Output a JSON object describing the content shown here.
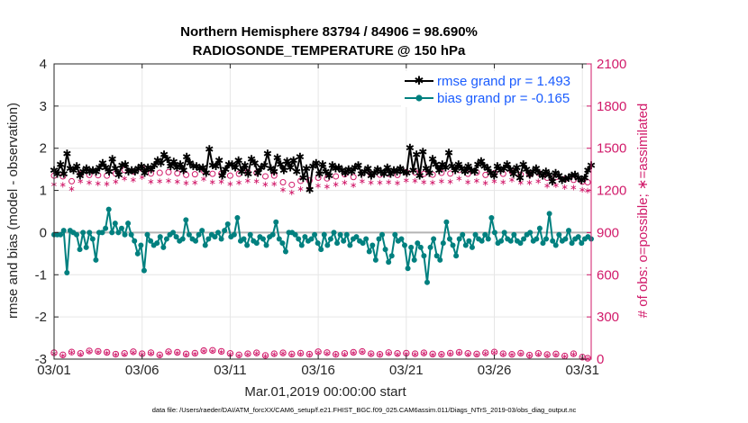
{
  "title_line1": "Northern Hemisphere 83794 / 84906 = 98.690%",
  "title_line2": "RADIOSONDE_TEMPERATURE @ 150 hPa",
  "footnote": "data file: /Users/raeder/DAI/ATM_forcXX/CAM6_setup/f.e21.FHIST_BGC.f09_025.CAM6assim.011/Diags_NTrS_2019-03/obs_diag_output.nc",
  "colors": {
    "rmse": "#000000",
    "bias": "#00807f",
    "obs": "#d11a6a",
    "zero_line": "#b4b4b4",
    "legend_text": "#1a5cff"
  },
  "chart_data": {
    "type": "line",
    "xlabel": "Mar.01,2019 00:00:00 start",
    "ylabel": "rmse and bias (model - observation)",
    "y2label": "# of obs: o=possible; ∗=assimilated",
    "x_tick_labels": [
      "03/01",
      "03/06",
      "03/11",
      "03/16",
      "03/21",
      "03/26",
      "03/31"
    ],
    "x_tick_days": [
      1,
      6,
      11,
      16,
      21,
      26,
      31
    ],
    "xlim": [
      1,
      31.5
    ],
    "ylim": [
      -3,
      4
    ],
    "y_ticks": [
      -3,
      -2,
      -1,
      0,
      1,
      2,
      3,
      4
    ],
    "y_tick_labels": [
      "-3",
      "-2",
      "-1",
      "0",
      "1",
      "2",
      "3",
      "4"
    ],
    "y2lim": [
      0,
      2100
    ],
    "y2_ticks": [
      0,
      300,
      600,
      900,
      1200,
      1500,
      1800,
      2100
    ],
    "y2_tick_labels": [
      "0",
      "300",
      "600",
      "900",
      "1200",
      "1500",
      "1800",
      "2100"
    ],
    "grid": true,
    "legend_position": "top-right",
    "series": [
      {
        "name": "rmse grand pr = 1.493",
        "axis": "left",
        "marker": "star",
        "values": [
          1.48,
          1.4,
          1.62,
          1.4,
          1.88,
          1.52,
          1.48,
          1.58,
          1.35,
          1.45,
          1.52,
          1.45,
          1.48,
          1.45,
          1.55,
          1.65,
          1.55,
          1.45,
          1.75,
          1.52,
          1.38,
          1.6,
          1.62,
          1.45,
          1.48,
          1.45,
          1.52,
          1.58,
          1.42,
          1.55,
          1.5,
          1.6,
          1.72,
          1.65,
          1.85,
          1.75,
          1.58,
          1.68,
          1.55,
          1.62,
          1.48,
          1.8,
          1.65,
          1.58,
          1.58,
          1.52,
          1.55,
          1.42,
          1.98,
          1.6,
          1.58,
          1.72,
          1.35,
          1.5,
          1.62,
          1.62,
          1.55,
          1.72,
          1.45,
          1.6,
          1.4,
          1.75,
          1.65,
          1.42,
          1.55,
          1.6,
          1.88,
          1.52,
          1.45,
          1.78,
          1.62,
          1.48,
          1.7,
          1.55,
          1.72,
          1.45,
          1.8,
          1.3,
          1.52,
          1.02,
          1.58,
          1.65,
          1.4,
          1.62,
          1.45,
          1.35,
          1.6,
          1.52,
          1.55,
          1.48,
          1.42,
          1.5,
          1.45,
          1.55,
          1.6,
          1.4,
          1.45,
          1.52,
          1.35,
          1.42,
          1.5,
          1.45,
          1.4,
          1.55,
          1.4,
          1.48,
          1.45,
          1.52,
          1.45,
          1.42,
          2.02,
          1.48,
          1.85,
          1.35,
          1.92,
          1.52,
          1.42,
          1.75,
          1.62,
          1.48,
          1.62,
          1.55,
          1.9,
          1.58,
          1.48,
          1.62,
          1.52,
          1.45,
          1.58,
          1.48,
          1.45,
          1.62,
          1.7,
          1.58,
          1.52,
          1.42,
          1.35,
          1.58,
          1.48,
          1.52,
          1.62,
          1.5,
          1.4,
          1.55,
          1.3,
          1.62,
          1.5,
          1.38,
          1.45,
          1.52,
          1.42,
          1.35,
          1.45,
          1.38,
          1.22,
          1.42,
          1.35,
          1.25,
          1.28,
          1.3,
          1.35,
          1.38,
          1.3,
          1.25,
          1.3,
          1.48,
          1.6
        ]
      },
      {
        "name": "bias grand pr = -0.165",
        "axis": "left",
        "marker": "circle",
        "values": [
          -0.05,
          -0.05,
          -0.05,
          0.05,
          -0.95,
          0.05,
          0.0,
          -0.05,
          -0.4,
          0.0,
          -0.35,
          0.0,
          -0.15,
          -0.65,
          0.0,
          0.0,
          0.1,
          0.55,
          0.0,
          0.22,
          0.0,
          0.1,
          -0.05,
          0.22,
          -0.05,
          -0.2,
          -0.5,
          -0.3,
          -0.9,
          -0.05,
          -0.2,
          -0.3,
          -0.25,
          -0.1,
          -0.35,
          -0.15,
          -0.05,
          0.0,
          -0.1,
          -0.2,
          -0.15,
          0.3,
          -0.05,
          -0.15,
          -0.2,
          -0.05,
          0.05,
          -0.3,
          -0.15,
          -0.05,
          -0.1,
          0.0,
          -0.15,
          0.05,
          0.2,
          -0.1,
          -0.05,
          0.35,
          -0.2,
          -0.15,
          -0.3,
          -0.05,
          -0.2,
          -0.25,
          -0.1,
          -0.15,
          -0.3,
          -0.1,
          -0.05,
          0.25,
          -0.15,
          -0.25,
          -0.45,
          0.0,
          0.0,
          -0.05,
          -0.15,
          -0.3,
          -0.1,
          -0.2,
          -0.15,
          -0.05,
          -0.25,
          -0.4,
          -0.05,
          -0.3,
          -0.15,
          0.0,
          -0.25,
          -0.05,
          -0.2,
          -0.05,
          -0.3,
          -0.15,
          -0.1,
          -0.2,
          -0.25,
          -0.15,
          -0.45,
          -0.3,
          -0.65,
          -0.15,
          -0.05,
          -0.4,
          -0.7,
          -0.55,
          -0.05,
          -0.2,
          -0.15,
          -0.3,
          -0.85,
          -0.35,
          -0.65,
          -0.25,
          -0.35,
          -0.55,
          -1.18,
          -0.35,
          -0.15,
          -0.55,
          -0.65,
          -0.25,
          0.25,
          -0.15,
          -0.3,
          -0.55,
          -0.15,
          -0.05,
          -0.3,
          -0.2,
          -0.35,
          -0.05,
          -0.15,
          -0.2,
          -0.05,
          -0.15,
          0.35,
          0.0,
          -0.25,
          -0.2,
          0.0,
          -0.15,
          -0.2,
          -0.05,
          -0.2,
          -0.25,
          -0.15,
          -0.05,
          0.0,
          -0.2,
          -0.15,
          0.1,
          -0.25,
          -0.15,
          0.45,
          -0.2,
          -0.3,
          -0.05,
          -0.2,
          -0.15,
          0.05,
          -0.25,
          -0.15,
          -0.1,
          -0.25,
          -0.15,
          -0.1,
          -0.15
        ]
      },
      {
        "name": "possible",
        "axis": "right",
        "marker": "o",
        "x": [
          1,
          1.5,
          2,
          2.5,
          3,
          3.5,
          4,
          4.5,
          5,
          5.5,
          6,
          6.5,
          7,
          7.5,
          8,
          8.5,
          9,
          9.5,
          10,
          10.5,
          11,
          11.5,
          12,
          12.5,
          13,
          13.5,
          14,
          14.5,
          15,
          15.5,
          16,
          16.5,
          17,
          17.5,
          18,
          18.5,
          19,
          19.5,
          20,
          20.5,
          21,
          21.5,
          22,
          22.5,
          23,
          23.5,
          24,
          24.5,
          25,
          25.5,
          26,
          26.5,
          27,
          27.5,
          28,
          28.5,
          29,
          29.5,
          30,
          30.5,
          31,
          31.3
        ],
        "values": [
          1305,
          1300,
          1265,
          1318,
          1310,
          1308,
          1305,
          1320,
          1345,
          1335,
          1355,
          1320,
          1325,
          1330,
          1322,
          1310,
          1315,
          1340,
          1318,
          1320,
          1305,
          1318,
          1330,
          1325,
          1300,
          1305,
          1258,
          1240,
          1268,
          1270,
          1290,
          1285,
          1300,
          1315,
          1295,
          1325,
          1315,
          1312,
          1318,
          1310,
          1330,
          1328,
          1318,
          1312,
          1325,
          1320,
          1345,
          1318,
          1328,
          1310,
          1322,
          1318,
          1335,
          1312,
          1315,
          1325,
          1290,
          1295,
          1280,
          1275,
          1262,
          1258
        ],
        "assimilated_values": [
          1250,
          1245,
          1218,
          1270,
          1260,
          1255,
          1252,
          1268,
          1290,
          1282,
          1300,
          1268,
          1272,
          1275,
          1268,
          1258,
          1262,
          1288,
          1265,
          1268,
          1252,
          1262,
          1275,
          1270,
          1248,
          1252,
          1210,
          1190,
          1218,
          1220,
          1238,
          1232,
          1248,
          1262,
          1242,
          1272,
          1262,
          1260,
          1265,
          1258,
          1278,
          1275,
          1265,
          1260,
          1272,
          1268,
          1290,
          1265,
          1275,
          1258,
          1270,
          1265,
          1282,
          1260,
          1262,
          1272,
          1240,
          1242,
          1228,
          1225,
          1210,
          1205
        ],
        "low_values": [
          45,
          30,
          50,
          40,
          58,
          55,
          48,
          35,
          40,
          52,
          38,
          45,
          30,
          52,
          48,
          36,
          42,
          60,
          62,
          55,
          40,
          30,
          38,
          44,
          26,
          38,
          44,
          36,
          42,
          35,
          52,
          46,
          34,
          40,
          48,
          54,
          38,
          34,
          46,
          40,
          42,
          38,
          44,
          36,
          34,
          42,
          48,
          40,
          36,
          44,
          50,
          38,
          34,
          42,
          28,
          40,
          32,
          36,
          22,
          38,
          14,
          6
        ]
      }
    ]
  },
  "legend": {
    "rmse": "rmse grand pr = 1.493",
    "bias": "bias grand pr = -0.165"
  }
}
